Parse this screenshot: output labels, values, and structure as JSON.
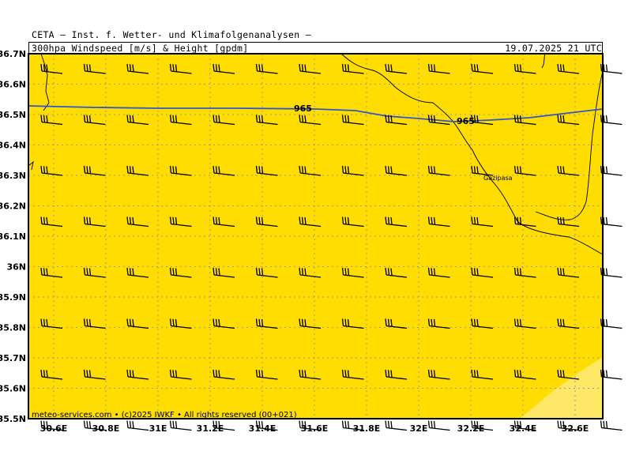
{
  "header": {
    "title": "CETA — Inst. f. Wetter- und Klimafolgenanalysen —",
    "subtitle": "300hpa_Windspeed_[m/s]_&_Height_[gpdm]",
    "timestamp": "19.07.2025 21 UTC"
  },
  "map": {
    "fill_color": "#ffdd00",
    "highlight_color": "#ffe866",
    "contour_color": "#3355cc",
    "lat_labels": [
      "36.7N",
      "36.6N",
      "36.5N",
      "36.4N",
      "36.3N",
      "36.2N",
      "36.1N",
      "36N",
      "35.9N",
      "35.8N",
      "35.7N",
      "35.6N",
      "35.5N"
    ],
    "lon_labels": [
      "30.6E",
      "30.8E",
      "31E",
      "31.2E",
      "31.4E",
      "31.6E",
      "31.8E",
      "32E",
      "32.2E",
      "32.4E",
      "32.6E"
    ],
    "contour_labels": [
      "965",
      "965"
    ],
    "place_label": "Gazipasa",
    "footer": "meteo-services.com • (c)2025 IWKF • All rights reserved (00+021)"
  }
}
